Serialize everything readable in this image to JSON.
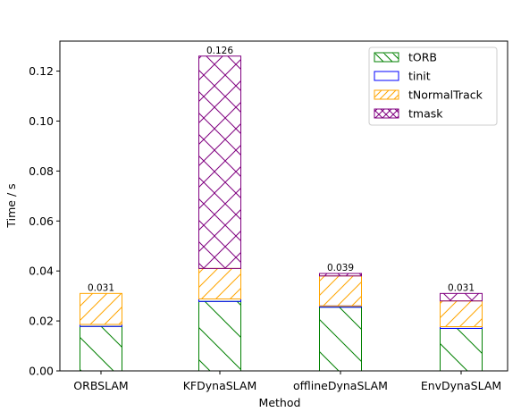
{
  "chart_data": {
    "type": "bar",
    "stacked": true,
    "categories": [
      "ORBSLAM",
      "KFDynaSLAM",
      "offlineDynaSLAM",
      "EnvDynaSLAM"
    ],
    "series": [
      {
        "name": "tORB",
        "values": [
          0.0178,
          0.0278,
          0.0255,
          0.017
        ],
        "color": "#008000",
        "hatch": "backslash"
      },
      {
        "name": "tinit",
        "values": [
          0.0008,
          0.001,
          0.0005,
          0.0007
        ],
        "color": "#0000ff",
        "hatch": "none"
      },
      {
        "name": "tNormalTrack",
        "values": [
          0.0124,
          0.0122,
          0.012,
          0.0103
        ],
        "color": "#ffa500",
        "hatch": "slash"
      },
      {
        "name": "tmask",
        "values": [
          0.0,
          0.085,
          0.001,
          0.003
        ],
        "color": "#800080",
        "hatch": "cross"
      }
    ],
    "totals_labels": [
      "0.031",
      "0.126",
      "0.039",
      "0.031"
    ],
    "totals": [
      0.031,
      0.126,
      0.039,
      0.031
    ],
    "xlabel": "Method",
    "ylabel": "Time / s",
    "ylim": [
      0,
      0.132
    ],
    "yticks": [
      0.0,
      0.02,
      0.04,
      0.06,
      0.08,
      0.1,
      0.12
    ],
    "ytick_labels": [
      "0.00",
      "0.02",
      "0.04",
      "0.06",
      "0.08",
      "0.10",
      "0.12"
    ],
    "legend_position": "top-right",
    "grid": false
  }
}
